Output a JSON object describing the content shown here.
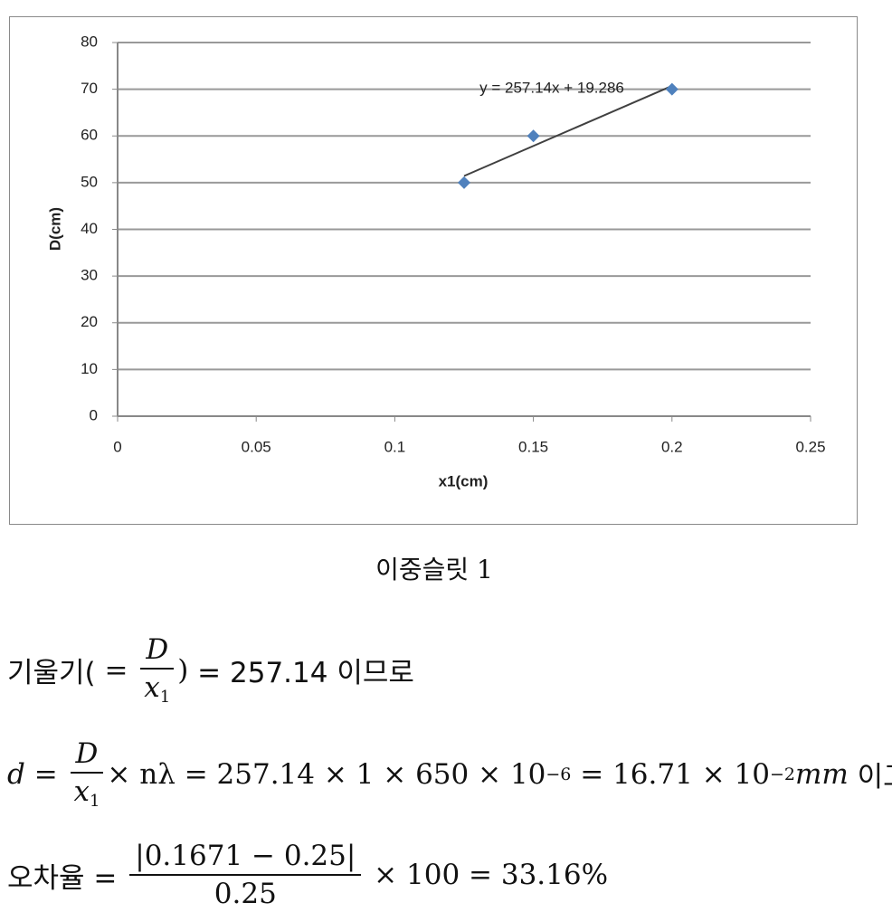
{
  "chart_data": {
    "type": "scatter",
    "x_label": "x1(cm)",
    "y_label": "D(cm)",
    "x": [
      0.125,
      0.15,
      0.2
    ],
    "values": [
      50,
      60,
      70
    ],
    "color": "#4f81bd",
    "trendline": {
      "x": [
        0.125,
        0.2
      ],
      "values": [
        51.43,
        70.71
      ],
      "color": "#404040",
      "label": "y = 257.14x + 19.286"
    },
    "xlim": [
      0,
      0.25
    ],
    "xticks": [
      0,
      0.05,
      0.1,
      0.15,
      0.2,
      0.25
    ],
    "ylim": [
      0,
      80
    ],
    "yticks": [
      0,
      10,
      20,
      30,
      40,
      50,
      60,
      70,
      80
    ],
    "grid": true
  },
  "caption": "이중슬릿 1",
  "equations": [
    {
      "prefix": "기울기(",
      "eq": " = ",
      "num": "D",
      "den": "x",
      "den_sub": "1",
      "close": ")",
      "rest": " = 257.14 이므로"
    },
    {
      "lhs": "d",
      "eq": " = ",
      "num": "D",
      "den": "x",
      "den_sub": "1",
      "mid": "× nλ = 257.14 × 1 × 650 × 10",
      "exp1": "−6",
      "mid2": " = 16.71 × 10",
      "exp2": "−2",
      "unit": "mm",
      "rest": " 이고"
    },
    {
      "prefix": "오차율 = ",
      "num": "|0.1671 − 0.25|",
      "den": "0.25",
      "rest": " × 100 = 33.16%"
    }
  ]
}
